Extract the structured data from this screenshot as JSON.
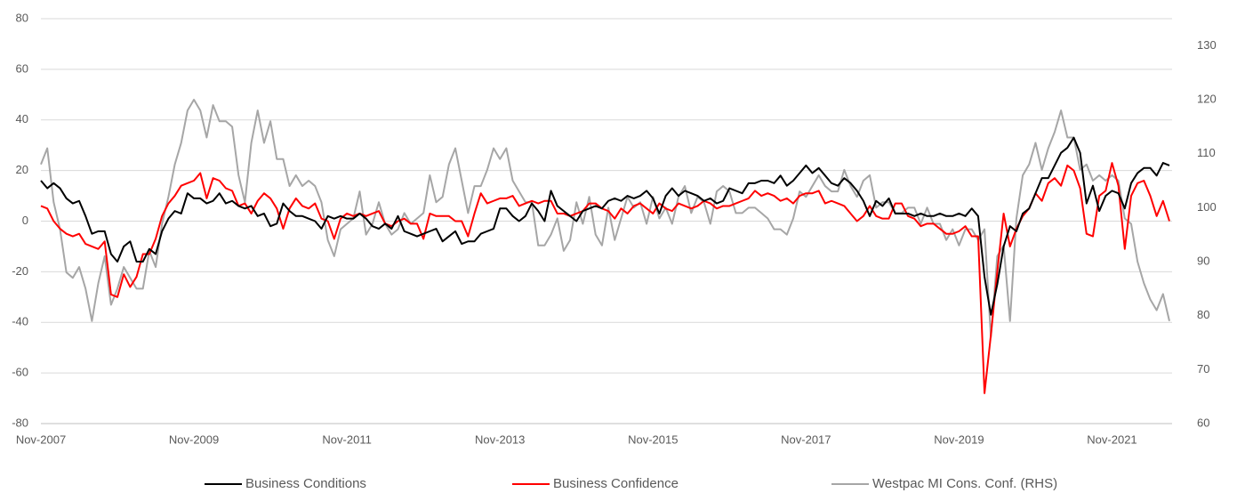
{
  "chart_data": {
    "type": "line",
    "categories": [
      "Nov-2007",
      null,
      null,
      null,
      null,
      null,
      null,
      null,
      null,
      null,
      null,
      null,
      null,
      null,
      null,
      null,
      null,
      null,
      null,
      null,
      null,
      null,
      null,
      null,
      "Nov-2009",
      null,
      null,
      null,
      null,
      null,
      null,
      null,
      null,
      null,
      null,
      null,
      null,
      null,
      null,
      null,
      null,
      null,
      null,
      null,
      null,
      null,
      null,
      null,
      "Nov-2011",
      null,
      null,
      null,
      null,
      null,
      null,
      null,
      null,
      null,
      null,
      null,
      null,
      null,
      null,
      null,
      null,
      null,
      null,
      null,
      null,
      null,
      null,
      null,
      "Nov-2013",
      null,
      null,
      null,
      null,
      null,
      null,
      null,
      null,
      null,
      null,
      null,
      null,
      null,
      null,
      null,
      null,
      null,
      null,
      null,
      null,
      null,
      null,
      null,
      "Nov-2015",
      null,
      null,
      null,
      null,
      null,
      null,
      null,
      null,
      null,
      null,
      null,
      null,
      null,
      null,
      null,
      null,
      null,
      null,
      null,
      null,
      null,
      null,
      null,
      "Nov-2017",
      null,
      null,
      null,
      null,
      null,
      null,
      null,
      null,
      null,
      null,
      null,
      null,
      null,
      null,
      null,
      null,
      null,
      null,
      null,
      null,
      null,
      null,
      null,
      "Nov-2019",
      null,
      null,
      null,
      null,
      null,
      null,
      null,
      null,
      null,
      null,
      null,
      null,
      null,
      null,
      null,
      null,
      null,
      null,
      null,
      null,
      null,
      null,
      null,
      "Nov-2021",
      null,
      null,
      null,
      null,
      null,
      null,
      null,
      null,
      null
    ],
    "series": [
      {
        "name": "Business Conditions",
        "color": "#000000",
        "values": [
          16,
          13,
          15,
          13,
          9,
          7,
          8,
          2,
          -5,
          -4,
          -4,
          -13,
          -16,
          -10,
          -8,
          -16,
          -16,
          -11,
          -13,
          -4,
          1,
          4,
          3,
          11,
          9,
          9,
          7,
          8,
          11,
          7,
          8,
          6,
          5,
          6,
          2,
          3,
          -2,
          -1,
          7,
          4,
          2,
          2,
          1,
          0,
          -3,
          2,
          1,
          2,
          1,
          1,
          3,
          1,
          -2,
          -3,
          -1,
          -3,
          2,
          -4,
          -5,
          -6,
          -5,
          -4,
          -3,
          -8,
          -6,
          -4,
          -9,
          -8,
          -8,
          -5,
          -4,
          -3,
          5,
          5,
          2,
          0,
          2,
          7,
          4,
          0,
          12,
          6,
          4,
          2,
          0,
          4,
          5,
          6,
          5,
          8,
          9,
          8,
          10,
          9,
          10,
          12,
          9,
          3,
          10,
          13,
          10,
          12,
          11,
          10,
          8,
          9,
          7,
          8,
          13,
          12,
          11,
          15,
          15,
          16,
          16,
          15,
          18,
          14,
          16,
          19,
          22,
          19,
          21,
          18,
          15,
          14,
          17,
          15,
          12,
          8,
          2,
          8,
          6,
          9,
          3,
          3,
          3,
          2,
          3,
          2,
          2,
          3,
          2,
          2,
          3,
          2,
          5,
          2,
          -22,
          -37,
          -25,
          -10,
          -2,
          -4,
          3,
          5,
          11,
          17,
          17,
          22,
          27,
          29,
          33,
          27,
          7,
          14,
          4,
          10,
          12,
          11,
          5,
          15,
          19,
          21,
          21,
          18,
          23,
          22
        ]
      },
      {
        "name": "Business Confidence",
        "color": "#ff0000",
        "values": [
          6,
          5,
          0,
          -3,
          -5,
          -6,
          -5,
          -9,
          -10,
          -11,
          -8,
          -29,
          -30,
          -21,
          -26,
          -22,
          -13,
          -13,
          -7,
          2,
          7,
          10,
          14,
          15,
          16,
          19,
          9,
          17,
          16,
          13,
          12,
          6,
          7,
          3,
          8,
          11,
          9,
          5,
          -3,
          5,
          9,
          6,
          5,
          7,
          1,
          0,
          -7,
          1,
          3,
          2,
          3,
          2,
          3,
          4,
          -1,
          -2,
          0,
          1,
          -1,
          -1,
          -7,
          3,
          2,
          2,
          2,
          0,
          0,
          -6,
          3,
          11,
          7,
          8,
          9,
          9,
          10,
          6,
          7,
          8,
          7,
          8,
          8,
          3,
          3,
          2,
          3,
          4,
          7,
          7,
          5,
          4,
          1,
          5,
          3,
          6,
          7,
          5,
          3,
          7,
          5,
          4,
          7,
          6,
          5,
          6,
          8,
          7,
          5,
          6,
          6,
          7,
          8,
          9,
          12,
          10,
          11,
          10,
          8,
          9,
          7,
          10,
          11,
          11,
          12,
          7,
          8,
          7,
          6,
          3,
          0,
          2,
          6,
          2,
          1,
          1,
          7,
          7,
          2,
          1,
          -2,
          -1,
          -1,
          -3,
          -5,
          -5,
          -4,
          -2,
          -6,
          -6,
          -68,
          -45,
          -20,
          3,
          -10,
          -3,
          2,
          5,
          11,
          8,
          15,
          17,
          14,
          22,
          20,
          13,
          -5,
          -6,
          10,
          12,
          23,
          14,
          -11,
          10,
          15,
          16,
          10,
          2,
          8,
          0
        ]
      },
      {
        "name": "Westpac MI Cons. Conf. (RHS)",
        "color": "#a6a6a6",
        "axis": "y2",
        "values": [
          108,
          111,
          101,
          96,
          88,
          87,
          89,
          85,
          79,
          86,
          91,
          82,
          85,
          89,
          87,
          85,
          85,
          92,
          89,
          97,
          102,
          108,
          112,
          118,
          120,
          118,
          113,
          119,
          116,
          116,
          115,
          106,
          101,
          112,
          118,
          112,
          116,
          109,
          109,
          104,
          106,
          104,
          105,
          104,
          101,
          94,
          91,
          96,
          97,
          98,
          103,
          95,
          97,
          101,
          97,
          95,
          96,
          99,
          97,
          98,
          99,
          106,
          101,
          102,
          108,
          111,
          105,
          99,
          104,
          104,
          107,
          111,
          109,
          111,
          105,
          103,
          101,
          101,
          93,
          93,
          95,
          98,
          92,
          94,
          101,
          97,
          102,
          95,
          93,
          100,
          94,
          98,
          102,
          100,
          101,
          97,
          102,
          98,
          100,
          97,
          102,
          104,
          99,
          102,
          101,
          97,
          103,
          104,
          103,
          99,
          99,
          100,
          100,
          99,
          98,
          96,
          96,
          95,
          98,
          103,
          102,
          104,
          106,
          104,
          103,
          103,
          107,
          104,
          102,
          105,
          106,
          100,
          101,
          101,
          99,
          99,
          100,
          100,
          97,
          100,
          97,
          97,
          94,
          96,
          93,
          96,
          96,
          94,
          96,
          76,
          91,
          93,
          79,
          98,
          106,
          108,
          112,
          107,
          111,
          114,
          118,
          113,
          113,
          107,
          108,
          105,
          106,
          105,
          106,
          105,
          98,
          97,
          90,
          86,
          83,
          81,
          84,
          79
        ]
      }
    ],
    "ylim": [
      -80,
      80
    ],
    "yticks": [
      -80,
      -60,
      -40,
      -20,
      0,
      20,
      40,
      60,
      80
    ],
    "y2lim": [
      60,
      135
    ],
    "y2ticks": [
      60,
      70,
      80,
      90,
      100,
      110,
      120,
      130
    ],
    "grid": true,
    "legend": "bottom"
  }
}
